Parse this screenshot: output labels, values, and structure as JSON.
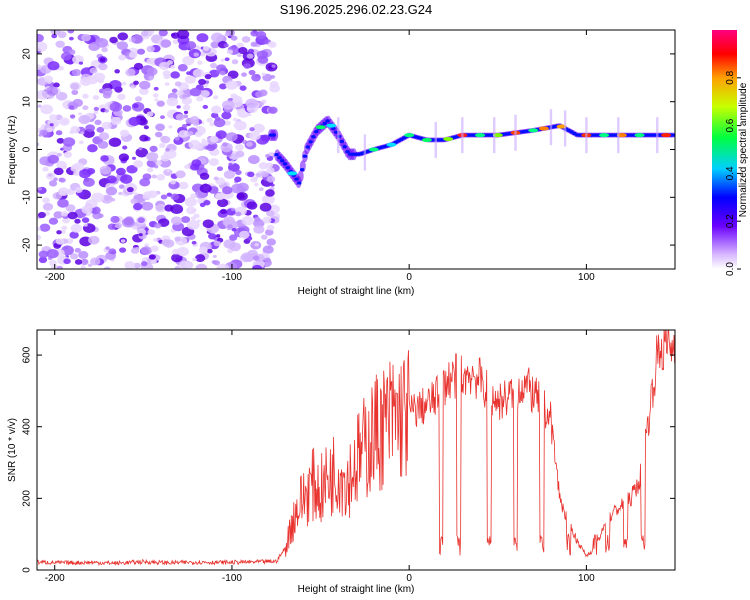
{
  "figure_title": "S196.2025.296.02.23.G24",
  "chart_data": [
    {
      "type": "heatmap",
      "name": "spectrogram",
      "xlabel": "Height of straight line (km)",
      "ylabel": "Frequency (Hz)",
      "xlim": [
        -210,
        150
      ],
      "ylim": [
        -25,
        25
      ],
      "xticks": [
        -200,
        -100,
        0,
        100
      ],
      "yticks": [
        -20,
        -10,
        0,
        10,
        20
      ],
      "colorbar": {
        "label": "Normalized spectral amplitude",
        "range": [
          0,
          1
        ],
        "ticks": [
          0.0,
          0.2,
          0.4,
          0.6,
          0.8
        ]
      },
      "noise_region": {
        "x_from": -210,
        "x_to": -75
      },
      "ridge": [
        {
          "x": -75,
          "y": -1
        },
        {
          "x": -70,
          "y": -3
        },
        {
          "x": -62,
          "y": -7
        },
        {
          "x": -58,
          "y": 0
        },
        {
          "x": -52,
          "y": 4
        },
        {
          "x": -46,
          "y": 6
        },
        {
          "x": -40,
          "y": 3
        },
        {
          "x": -34,
          "y": -1
        },
        {
          "x": -28,
          "y": -1
        },
        {
          "x": -20,
          "y": 0
        },
        {
          "x": -10,
          "y": 1
        },
        {
          "x": 0,
          "y": 3
        },
        {
          "x": 10,
          "y": 2
        },
        {
          "x": 20,
          "y": 2
        },
        {
          "x": 30,
          "y": 3
        },
        {
          "x": 50,
          "y": 3
        },
        {
          "x": 70,
          "y": 4
        },
        {
          "x": 85,
          "y": 5
        },
        {
          "x": 95,
          "y": 3
        },
        {
          "x": 110,
          "y": 3
        },
        {
          "x": 130,
          "y": 3
        },
        {
          "x": 150,
          "y": 3
        }
      ]
    },
    {
      "type": "line",
      "name": "snr",
      "xlabel": "Height of straight line (km)",
      "ylabel": "SNR (10 * v/v)",
      "xlim": [
        -210,
        150
      ],
      "ylim": [
        0,
        670
      ],
      "xticks": [
        -200,
        -100,
        0,
        100
      ],
      "yticks": [
        0,
        200,
        400,
        600
      ],
      "color": "#e8322e",
      "series": [
        {
          "name": "SNR",
          "x": [
            -210,
            -195,
            -180,
            -165,
            -150,
            -135,
            -120,
            -105,
            -90,
            -75,
            -70,
            -65,
            -60,
            -55,
            -50,
            -45,
            -40,
            -35,
            -30,
            -25,
            -20,
            -15,
            -10,
            -5,
            0,
            5,
            10,
            15,
            20,
            25,
            30,
            35,
            40,
            45,
            50,
            55,
            60,
            65,
            70,
            75,
            80,
            85,
            90,
            95,
            100,
            105,
            110,
            115,
            120,
            125,
            130,
            135,
            140,
            145,
            150
          ],
          "y": [
            22,
            20,
            21,
            19,
            23,
            20,
            22,
            21,
            22,
            24,
            60,
            150,
            200,
            240,
            220,
            260,
            280,
            250,
            300,
            340,
            380,
            400,
            420,
            430,
            440,
            450,
            460,
            480,
            520,
            540,
            540,
            550,
            530,
            490,
            470,
            480,
            500,
            520,
            490,
            460,
            420,
            200,
            130,
            80,
            40,
            60,
            120,
            160,
            180,
            200,
            250,
            420,
            600,
            630,
            620
          ]
        }
      ]
    }
  ]
}
